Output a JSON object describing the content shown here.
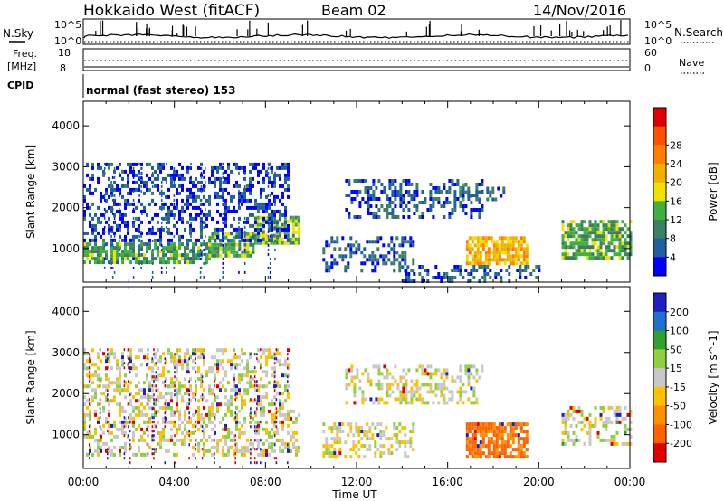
{
  "header": {
    "station": "Hokkaido West (fitACF)",
    "beam": "Beam 02",
    "date": "14/Nov/2016"
  },
  "noise_panel": {
    "left_label": "N.Sky",
    "right_label": "N.Search",
    "left_ticks": [
      "10^5",
      "10^0"
    ],
    "right_ticks": [
      "10^5",
      "10^0"
    ]
  },
  "freq_panel": {
    "left_label_1": "Freq.",
    "left_label_2": "[MHz]",
    "right_label": "Nave",
    "left_ticks": [
      "18",
      "8"
    ],
    "right_ticks": [
      "60",
      "0"
    ]
  },
  "cpid_panel": {
    "label": "CPID",
    "mode": "normal (fast stereo) 153"
  },
  "x_axis": {
    "title": "Time UT",
    "ticks": [
      "00:00",
      "04:00",
      "08:00",
      "12:00",
      "16:00",
      "20:00",
      "00:00"
    ]
  },
  "colors": {
    "power_scale": [
      "#0000ff",
      "#2060a0",
      "#3d8060",
      "#40b040",
      "#f0e000",
      "#f0b000",
      "#ff8000",
      "#ff5000",
      "#e00000"
    ],
    "velocity_scale": [
      "#2020c0",
      "#2070d0",
      "#30a030",
      "#90d040",
      "#c8c8c8",
      "#ffc000",
      "#ff9000",
      "#ff6000",
      "#e00000"
    ]
  },
  "chart_data": [
    {
      "type": "heatmap",
      "title": "",
      "xlabel": "Time UT",
      "ylabel": "Slant Range [km]",
      "xlim": [
        0,
        24
      ],
      "ylim": [
        180,
        4600
      ],
      "yticks": [
        1000,
        2000,
        3000,
        4000
      ],
      "colorbar": {
        "label": "Power [dB]",
        "ticks": [
          4,
          8,
          12,
          16,
          20,
          24,
          28
        ],
        "range": [
          0,
          32
        ]
      },
      "regions": [
        {
          "t0": 0.0,
          "t1": 5.5,
          "r0": 650,
          "r1": 1150,
          "level": 12
        },
        {
          "t0": 5.5,
          "t1": 7.5,
          "r0": 800,
          "r1": 1400,
          "level": 14
        },
        {
          "t0": 7.5,
          "t1": 9.5,
          "r0": 1100,
          "r1": 1800,
          "level": 15
        },
        {
          "t0": 0.0,
          "t1": 9.0,
          "r0": 1200,
          "r1": 3100,
          "level": 4
        },
        {
          "t0": 10.5,
          "t1": 14.5,
          "r0": 500,
          "r1": 1300,
          "level": 6
        },
        {
          "t0": 11.5,
          "t1": 17.5,
          "r0": 1800,
          "r1": 2700,
          "level": 5
        },
        {
          "t0": 16.5,
          "t1": 18.5,
          "r0": 2200,
          "r1": 2600,
          "level": 8
        },
        {
          "t0": 16.8,
          "t1": 19.5,
          "r0": 650,
          "r1": 1300,
          "level": 22
        },
        {
          "t0": 14.0,
          "t1": 20.0,
          "r0": 200,
          "r1": 600,
          "level": 6
        },
        {
          "t0": 21.0,
          "t1": 24.0,
          "r0": 800,
          "r1": 1700,
          "level": 13
        }
      ]
    },
    {
      "type": "heatmap",
      "title": "",
      "xlabel": "Time UT",
      "ylabel": "Slant Range [km]",
      "xlim": [
        0,
        24
      ],
      "ylim": [
        180,
        4600
      ],
      "yticks": [
        1000,
        2000,
        3000,
        4000
      ],
      "colorbar": {
        "label": "Velocity [m s^-1]",
        "ticks": [
          200,
          100,
          50,
          15,
          -15,
          -50,
          -100,
          -200
        ]
      },
      "regions": [
        {
          "t0": 0.0,
          "t1": 9.5,
          "r0": 500,
          "r1": 1700,
          "level": 0
        },
        {
          "t0": 0.0,
          "t1": 9.0,
          "r0": 1700,
          "r1": 3100,
          "level": 0
        },
        {
          "t0": 10.5,
          "t1": 14.5,
          "r0": 500,
          "r1": 1300,
          "level": -5
        },
        {
          "t0": 11.5,
          "t1": 17.5,
          "r0": 1800,
          "r1": 2700,
          "level": 0
        },
        {
          "t0": 16.8,
          "t1": 19.5,
          "r0": 500,
          "r1": 1300,
          "level": -80
        },
        {
          "t0": 21.0,
          "t1": 24.0,
          "r0": 800,
          "r1": 1700,
          "level": 5
        }
      ]
    }
  ]
}
